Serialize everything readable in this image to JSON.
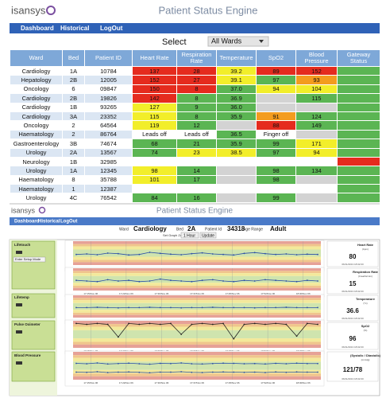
{
  "header": {
    "logo": "isansys",
    "title": "Patient Status Engine"
  },
  "nav": [
    "Dashboard",
    "Historical",
    "LogOut"
  ],
  "select": {
    "label": "Select",
    "value": "All Wards"
  },
  "table": {
    "columns": [
      "Ward",
      "Bed",
      "Patient ID",
      "Heart Rate",
      "Respiration Rate",
      "Temperature",
      "SpO2",
      "Blood Pressure",
      "Gateway Status"
    ],
    "rows": [
      [
        "Cardiology",
        "1A",
        "10784",
        "137",
        "28",
        "39.2",
        "89",
        "152"
      ],
      [
        "Hepatology",
        "2B",
        "12005",
        "152",
        "27",
        "39.1",
        "97",
        "93"
      ],
      [
        "Oncology",
        "6",
        "09847",
        "150",
        "8",
        "37.0",
        "94",
        "104"
      ],
      [
        "Cardiology",
        "2B",
        "19826",
        "142",
        "8",
        "36.9",
        null,
        "115"
      ],
      [
        "Cardiology",
        "1B",
        "93265",
        "127",
        "9",
        "36.0",
        null,
        null
      ],
      [
        "Cardiology",
        "3A",
        "23352",
        "115",
        "8",
        "35.9",
        "91",
        "124"
      ],
      [
        "Oncology",
        "2",
        "64564",
        "119",
        "12",
        null,
        "88",
        "149"
      ],
      [
        "Haematology",
        "2",
        "86764",
        "Leads off",
        "Leads off",
        "36.5",
        "Finger off",
        null
      ],
      [
        "Gastroenterology",
        "3B",
        "74674",
        "68",
        "21",
        "35.9",
        "99",
        "171"
      ],
      [
        "Urology",
        "2A",
        "13567",
        "74",
        "23",
        "38.5",
        "97",
        "94"
      ],
      [
        "Neurology",
        "1B",
        "32985",
        null,
        null,
        null,
        null,
        null
      ],
      [
        "Urology",
        "1A",
        "12345",
        "98",
        "14",
        null,
        "98",
        "134"
      ],
      [
        "Haematology",
        "8",
        "35788",
        "101",
        "17",
        null,
        "98",
        null
      ],
      [
        "Haematology",
        "1",
        "12387",
        null,
        null,
        null,
        null,
        null
      ],
      [
        "Urology",
        "4C",
        "76542",
        "84",
        "16",
        null,
        "99",
        null
      ]
    ],
    "cell_colors": [
      [
        "#e52b1e",
        "#e52b1e",
        "#f2ee2a",
        "#e52b1e",
        "#e52b1e",
        "#5bb553"
      ],
      [
        "#e52b1e",
        "#e52b1e",
        "#f2ee2a",
        "#5bb553",
        "#f39c1f",
        "#5bb553"
      ],
      [
        "#e52b1e",
        "#e52b1e",
        "#5bb553",
        "#f2ee2a",
        "#f2ee2a",
        "#5bb553"
      ],
      [
        "#e52b1e",
        "#5bb553",
        "#5bb553",
        "#d3d3d3",
        "#5bb553",
        "#5bb553"
      ],
      [
        "#f2ee2a",
        "#5bb553",
        "#5bb553",
        "#d3d3d3",
        "#d3d3d3",
        "#5bb553"
      ],
      [
        "#f2ee2a",
        "#5bb553",
        "#5bb553",
        "#f39c1f",
        "#5bb553",
        "#5bb553"
      ],
      [
        "#f2ee2a",
        "#5bb553",
        "#d3d3d3",
        "#e52b1e",
        "#5bb553",
        "#5bb553"
      ],
      [
        "#ffffff",
        "#ffffff",
        "#5bb553",
        "#ffffff",
        "#d3d3d3",
        "#5bb553"
      ],
      [
        "#5bb553",
        "#5bb553",
        "#5bb553",
        "#5bb553",
        "#f2ee2a",
        "#5bb553"
      ],
      [
        "#5bb553",
        "#f2ee2a",
        "#f2ee2a",
        "#5bb553",
        "#f2ee2a",
        "#5bb553"
      ],
      [
        "#ffffff",
        "#ffffff",
        "#ffffff",
        "#ffffff",
        "#ffffff",
        "#e52b1e"
      ],
      [
        "#f2ee2a",
        "#5bb553",
        "#d3d3d3",
        "#5bb553",
        "#5bb553",
        "#5bb553"
      ],
      [
        "#f2ee2a",
        "#5bb553",
        "#d3d3d3",
        "#5bb553",
        "#d3d3d3",
        "#5bb553"
      ],
      [
        "#ffffff",
        "#ffffff",
        "#ffffff",
        "#ffffff",
        "#ffffff",
        "#5bb553"
      ],
      [
        "#5bb553",
        "#5bb553",
        "#d3d3d3",
        "#5bb553",
        "#d3d3d3",
        "#5bb553"
      ]
    ]
  },
  "detail": {
    "logo": "isansys",
    "title": "Patient Status Engine",
    "nav": [
      "Dashboard",
      "Historical",
      "LogOut"
    ],
    "fields": [
      {
        "label": "Ward",
        "value": "Cardiology"
      },
      {
        "label": "Bed",
        "value": "2A"
      },
      {
        "label": "Patient Id",
        "value": "34318"
      },
      {
        "label": "Age Range",
        "value": "Adult"
      }
    ],
    "zoom": {
      "label": "Set Graph Zoom",
      "value": "1 Hour",
      "button": "Update"
    },
    "devices": [
      {
        "name": "Lifetouch",
        "button": "Enter Setup Mode"
      },
      {
        "name": "Lifetemp"
      },
      {
        "name": "Pulse Oximeter"
      },
      {
        "name": "Blood Pressure"
      }
    ],
    "x_labels": [
      "17:15/Nov 06",
      "17:22/Nov 06",
      "17:30/Nov 06",
      "17:37/Nov 06",
      "17:45/Nov 06",
      "17:52/Nov 06",
      "18:00/Nov 06"
    ],
    "charts": [
      {
        "ylim": [
          40,
          130
        ],
        "series": [
          {
            "color": "#2b4fa8",
            "values": [
              80,
              82,
              79,
              85,
              83,
              78,
              80,
              88,
              84,
              81,
              79,
              83,
              86,
              82,
              80,
              78,
              84,
              87,
              83,
              80,
              82,
              79,
              81,
              80
            ]
          }
        ]
      },
      {
        "ylim": [
          0,
          35
        ],
        "series": [
          {
            "color": "#2b4fa8",
            "values": [
              16,
              15,
              14,
              17,
              15,
              16,
              14,
              15,
              18,
              16,
              15,
              14,
              16,
              17,
              15,
              14,
              16,
              15,
              17,
              16,
              15,
              14,
              16,
              15
            ]
          }
        ]
      },
      {
        "ylim": [
          33,
          41
        ],
        "series": [
          {
            "color": "#2b4fa8",
            "values": [
              36.6,
              36.6,
              36.7,
              36.6,
              36.5,
              36.6,
              36.6,
              36.7,
              36.6,
              36.6,
              36.5,
              36.6,
              36.6,
              36.7,
              36.6,
              36.6,
              36.6,
              36.5,
              36.6,
              36.6,
              36.7,
              36.6,
              36.6,
              36.6
            ]
          }
        ]
      },
      {
        "ylim": [
          70,
          100
        ],
        "series": [
          {
            "color": "#222222",
            "values": [
              97,
              96,
              97,
              96,
              82,
              97,
              96,
              97,
              96,
              97,
              85,
              96,
              97,
              96,
              97,
              80,
              96,
              97,
              96,
              97,
              96,
              83,
              97,
              96
            ]
          }
        ]
      },
      {
        "ylim": [
          40,
          180
        ],
        "series": [
          {
            "color": "#2b4fa8",
            "values": [
              122,
              120,
              124,
              119,
              121,
              123,
              120,
              118,
              122,
              121,
              124,
              120,
              119,
              121,
              123,
              122,
              120,
              121,
              119,
              122,
              120,
              123,
              121,
              121
            ]
          },
          {
            "color": "#2b4fa8",
            "values": [
              78,
              77,
              80,
              76,
              78,
              79,
              77,
              75,
              78,
              78,
              80,
              77,
              76,
              78,
              79,
              78,
              77,
              78,
              76,
              79,
              77,
              79,
              78,
              78
            ]
          }
        ]
      }
    ],
    "vitals": [
      {
        "name": "Heart Rate",
        "unit": "(bpm)",
        "value": "80",
        "time": "06/11/2013 18:02:00"
      },
      {
        "name": "Respiration Rate",
        "unit": "(breaths/min)",
        "value": "15",
        "time": "06/11/2013 18:02:00"
      },
      {
        "name": "Temperature",
        "unit": "(°C)",
        "value": "36.6",
        "time": "06/11/2013 18:02:00"
      },
      {
        "name": "SpO2",
        "unit": "(%)",
        "value": "96",
        "time": "06/11/2013 18:02:00"
      },
      {
        "name": "(Systolic / Diastolic)",
        "unit": "(mmHg)",
        "value": "121/78",
        "time": "06/11/2013 18:02:00"
      }
    ]
  }
}
